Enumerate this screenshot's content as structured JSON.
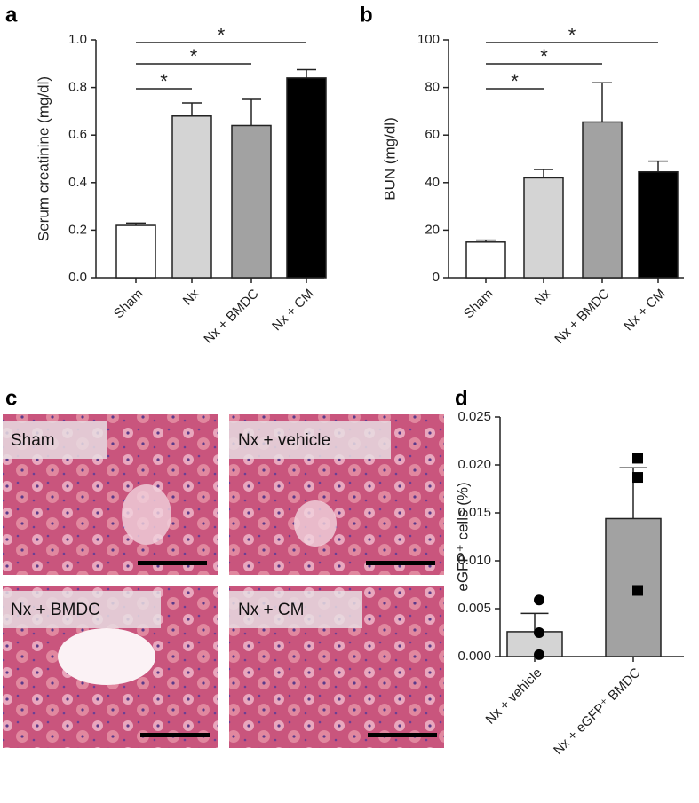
{
  "chart_data": [
    {
      "type": "bar",
      "panel_label": "a",
      "y_label": "Serum creatinine (mg/dl)",
      "categories": [
        "Sham",
        "Nx",
        "Nx + BMDC",
        "Nx + CM"
      ],
      "values": [
        0.22,
        0.68,
        0.64,
        0.84
      ],
      "errors": [
        0.01,
        0.055,
        0.11,
        0.035
      ],
      "colors": [
        "#ffffff",
        "#d4d4d4",
        "#a2a2a2",
        "#000000"
      ],
      "ylim": [
        0,
        1
      ],
      "yticks": [
        {
          "value": 0,
          "label": "0.0"
        },
        0.2,
        0.4,
        0.6,
        0.8,
        {
          "value": 1,
          "label": "1.0"
        }
      ],
      "significance": [
        {
          "label": "*",
          "pair": [
            0,
            1
          ]
        },
        {
          "label": "*",
          "pair": [
            0,
            2
          ]
        },
        {
          "label": "*",
          "pair": [
            0,
            3
          ]
        }
      ]
    },
    {
      "type": "bar",
      "panel_label": "b",
      "y_label": "BUN (mg/dl)",
      "categories": [
        "Sham",
        "Nx",
        "Nx + BMDC",
        "Nx + CM"
      ],
      "values": [
        15,
        42,
        65.5,
        44.5
      ],
      "errors": [
        0.8,
        3.5,
        16.5,
        4.5
      ],
      "colors": [
        "#ffffff",
        "#d4d4d4",
        "#a2a2a2",
        "#000000"
      ],
      "ylim": [
        0,
        100
      ],
      "yticks": [
        0,
        20,
        40,
        60,
        80,
        100
      ],
      "significance": [
        {
          "label": "*",
          "pair": [
            0,
            1
          ]
        },
        {
          "label": "*",
          "pair": [
            0,
            2
          ]
        },
        {
          "label": "*",
          "pair": [
            0,
            3
          ]
        }
      ]
    },
    {
      "type": "bar",
      "panel_label": "d",
      "y_label": "eGFP⁺ cells (%)",
      "categories": [
        "Nx + vehicle",
        "Nx + eGFP⁺ BMDC"
      ],
      "values": [
        0.0026,
        0.0144
      ],
      "errors": [
        0.0019,
        0.0053
      ],
      "colors": [
        "#d4d4d4",
        "#a2a2a2"
      ],
      "points": [
        [
          0.0059,
          0.0025,
          0.0002
        ],
        [
          0.0207,
          0.0187,
          0.0069
        ]
      ],
      "point_shapes": [
        "circle",
        "square"
      ],
      "ylim": [
        0,
        0.025
      ],
      "yticks": [
        {
          "value": 0,
          "label": "0.000"
        },
        {
          "value": 0.005,
          "label": "0.005"
        },
        {
          "value": 0.01,
          "label": "0.010"
        },
        {
          "value": 0.015,
          "label": "0.015"
        },
        {
          "value": 0.02,
          "label": "0.020"
        },
        {
          "value": 0.025,
          "label": "0.025"
        }
      ]
    }
  ],
  "micrographs": {
    "panel_label": "c",
    "labels": [
      "Sham",
      "Nx + vehicle",
      "Nx + BMDC",
      "Nx + CM"
    ]
  }
}
